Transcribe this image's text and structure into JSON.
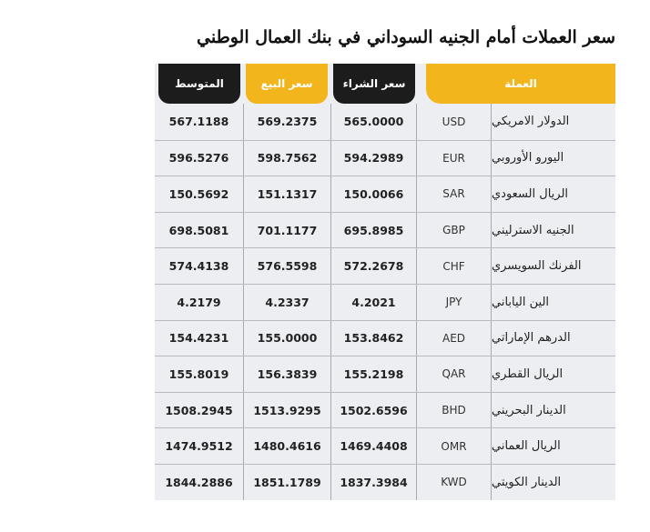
{
  "title": "سعر العملات أمام الجنيه السوداني في بنك العمال الوطني",
  "headers": {
    "average": "المتوسط",
    "sell": "سعر البيع",
    "buy": "سعر الشراء",
    "currency": "العملة"
  },
  "rows": [
    {
      "name": "الدولار الامريكي",
      "code": "USD",
      "buy": "565.0000",
      "sell": "569.2375",
      "avg": "567.1188"
    },
    {
      "name": "اليورو الأوروبي",
      "code": "EUR",
      "buy": "594.2989",
      "sell": "598.7562",
      "avg": "596.5276"
    },
    {
      "name": "الريال السعودي",
      "code": "SAR",
      "buy": "150.0066",
      "sell": "151.1317",
      "avg": "150.5692"
    },
    {
      "name": "الجنيه الاسترليني",
      "code": "GBP",
      "buy": "695.8985",
      "sell": "701.1177",
      "avg": "698.5081"
    },
    {
      "name": "الفرنك السويسري",
      "code": "CHF",
      "buy": "572.2678",
      "sell": "576.5598",
      "avg": "574.4138"
    },
    {
      "name": "الين الياباني",
      "code": "JPY",
      "buy": "4.2021",
      "sell": "4.2337",
      "avg": "4.2179"
    },
    {
      "name": "الدرهم الإماراتي",
      "code": "AED",
      "buy": "153.8462",
      "sell": "155.0000",
      "avg": "154.4231"
    },
    {
      "name": "الريال القطري",
      "code": "QAR",
      "buy": "155.2198",
      "sell": "156.3839",
      "avg": "155.8019"
    },
    {
      "name": "الدينار البحريني",
      "code": "BHD",
      "buy": "1502.6596",
      "sell": "1513.9295",
      "avg": "1508.2945"
    },
    {
      "name": "الريال العماني",
      "code": "OMR",
      "buy": "1469.4408",
      "sell": "1480.4616",
      "avg": "1474.9512"
    },
    {
      "name": "الدينار الكويتي",
      "code": "KWD",
      "buy": "1837.3984",
      "sell": "1851.1789",
      "avg": "1844.2886"
    }
  ]
}
